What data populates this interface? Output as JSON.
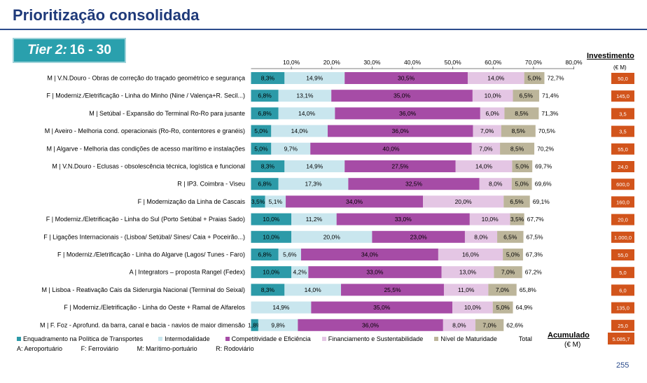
{
  "page_title": "Prioritização consolidada",
  "tier": {
    "label": "Tier 2",
    "colon": ":",
    "range": "16 - 30"
  },
  "investment": {
    "header": "Investimento",
    "unit": "(€ M)"
  },
  "accumulated": {
    "header": "Acumulado",
    "unit": "(€ M)",
    "value": "5.085,7"
  },
  "legend": [
    {
      "name": "Enquadramento na Política de Transportes",
      "color": "#2c9aa8"
    },
    {
      "name": "Intermodalidade",
      "color": "#c9e6ee"
    },
    {
      "name": "Competitividade e Eficiência",
      "color": "#a64ca6"
    },
    {
      "name": "Financiamento e Sustentabilidade",
      "color": "#e4c6e4"
    },
    {
      "name": "Nível de Maturidade",
      "color": "#bcb59a"
    },
    {
      "name": "Total",
      "color": "#ffffff"
    }
  ],
  "modes": [
    "A: Aeroportuário",
    "F: Ferroviário",
    "M: Marítimo-portuário",
    "R: Rodoviário"
  ],
  "page_number": "255",
  "colors": {
    "title": "#1f3a7a",
    "investment_badge": "#d2541b",
    "tier_box": "#2aa0ad"
  },
  "chart_data": {
    "type": "bar",
    "orientation": "horizontal",
    "stacked": true,
    "xlim": [
      0,
      80
    ],
    "xticks": [
      "10,0%",
      "20,0%",
      "30,0%",
      "40,0%",
      "50,0%",
      "60,0%",
      "70,0%",
      "80,0%"
    ],
    "xtick_values": [
      10,
      20,
      30,
      40,
      50,
      60,
      70,
      80
    ],
    "legend_position": "bottom",
    "categories": [
      "M | V.N.Douro - Obras de correção do traçado geométrico e segurança",
      "F | Moderniz./Eletrificação - Linha do Minho (Nine / Valença+R. Secil...)",
      "M | Setúbal - Expansão do Terminal Ro-Ro para jusante",
      "M | Aveiro - Melhoria cond. operacionais (Ro-Ro, contentores e granéis)",
      "M | Algarve - Melhoria das condições de acesso marítimo e instalações",
      "M | V.N.Douro - Eclusas - obsolescência técnica, logística e funcional",
      "R | IP3. Coimbra - Viseu",
      "F | Modernização da Linha de Cascais",
      "F | Moderniz./Eletrificação - Linha do Sul (Porto Setúbal + Praias Sado)",
      "F | Ligações Internacionais - (Lisboa/ Setúbal/ Sines/ Caia + Poceirão...)",
      "F | Moderniz./Eletrificação - Linha do Algarve (Lagos/ Tunes - Faro)",
      "A | Integrators – proposta Rangel (Fedex)",
      "M | Lisboa - Reativação Cais da Siderurgia Nacional (Terminal do Seixal)",
      "F | Moderniz./Eletrificação - Linha do Oeste + Ramal de Alfarelos",
      "M | F. Foz - Aprofund. da barra, canal e bacia - navios de maior dimensão"
    ],
    "series": [
      {
        "name": "Enquadramento na Política de Transportes",
        "values": [
          8.3,
          6.8,
          6.8,
          5.0,
          5.0,
          8.3,
          6.8,
          3.5,
          10.0,
          10.0,
          6.8,
          10.0,
          8.3,
          0,
          1.8
        ],
        "labels": [
          "8,3%",
          "6,8%",
          "6,8%",
          "5,0%",
          "5,0%",
          "8,3%",
          "6,8%",
          "3,5%",
          "10,0%",
          "10,0%",
          "6,8%",
          "10,0%",
          "8,3%",
          "",
          "1,8%"
        ]
      },
      {
        "name": "Intermodalidade",
        "values": [
          14.9,
          13.1,
          14.0,
          14.0,
          9.7,
          14.9,
          17.3,
          5.1,
          11.2,
          20.0,
          5.6,
          4.2,
          14.0,
          14.9,
          9.8
        ],
        "labels": [
          "14,9%",
          "13,1%",
          "14,0%",
          "14,0%",
          "9,7%",
          "14,9%",
          "17,3%",
          "5,1%",
          "11,2%",
          "20,0%",
          "5,6%",
          "4,2%",
          "14,0%",
          "14,9%",
          "9,8%"
        ]
      },
      {
        "name": "Competitividade e Eficiência",
        "values": [
          30.5,
          35.0,
          36.0,
          36.0,
          40.0,
          27.5,
          32.5,
          34.0,
          33.0,
          23.0,
          34.0,
          33.0,
          25.5,
          35.0,
          36.0
        ],
        "labels": [
          "30,5%",
          "35,0%",
          "36,0%",
          "36,0%",
          "40,0%",
          "27,5%",
          "32,5%",
          "34,0%",
          "33,0%",
          "23,0%",
          "34,0%",
          "33,0%",
          "25,5%",
          "35,0%",
          "36,0%"
        ]
      },
      {
        "name": "Financiamento e Sustentabilidade",
        "values": [
          14.0,
          10.0,
          6.0,
          7.0,
          7.0,
          14.0,
          8.0,
          20.0,
          10.0,
          8.0,
          16.0,
          13.0,
          11.0,
          10.0,
          8.0
        ],
        "labels": [
          "14,0%",
          "10,0%",
          "6,0%",
          "7,0%",
          "7,0%",
          "14,0%",
          "8,0%",
          "20,0%",
          "10,0%",
          "8,0%",
          "16,0%",
          "13,0%",
          "11,0%",
          "10,0%",
          "8,0%"
        ]
      },
      {
        "name": "Nível de Maturidade",
        "values": [
          5.0,
          6.5,
          8.5,
          8.5,
          8.5,
          5.0,
          5.0,
          6.5,
          3.5,
          6.5,
          5.0,
          7.0,
          7.0,
          5.0,
          7.0
        ],
        "labels": [
          "5,0%",
          "6,5%",
          "8,5%",
          "8,5%",
          "8,5%",
          "5,0%",
          "5,0%",
          "6,5%",
          "3,5%",
          "6,5%",
          "5,0%",
          "7,0%",
          "7,0%",
          "5,0%",
          "7,0%"
        ]
      }
    ],
    "totals": [
      "72,7%",
      "71,4%",
      "71,3%",
      "70,5%",
      "70,2%",
      "69,7%",
      "69,6%",
      "69,1%",
      "67,7%",
      "67,5%",
      "67,3%",
      "67,2%",
      "65,8%",
      "64,9%",
      "62,6%"
    ],
    "investments": [
      "50,0",
      "145,0",
      "3,5",
      "3,5",
      "55,0",
      "24,0",
      "600,0",
      "160,0",
      "20,0",
      "1.000,0",
      "55,0",
      "5,0",
      "6,0",
      "135,0",
      "25,0"
    ]
  }
}
